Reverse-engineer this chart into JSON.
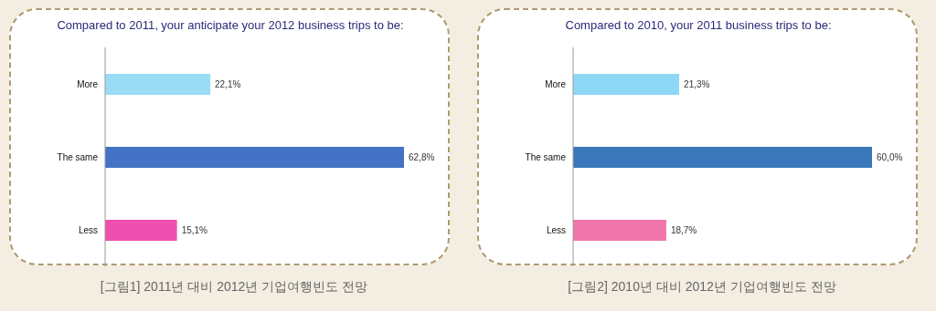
{
  "chart_data": [
    {
      "type": "bar",
      "orientation": "horizontal",
      "title": "Compared to 2011, your anticipate your 2012 business trips to be:",
      "categories": [
        "More",
        "The same",
        "Less"
      ],
      "values": [
        22.1,
        62.8,
        15.1
      ],
      "colors": [
        "#99dcf5",
        "#4472c4",
        "#ef4fae"
      ],
      "value_labels": [
        "22,1%",
        "62,8%",
        "15,1%"
      ],
      "annotations": [
        "[그림1] 2011년 대비 2012년 기업여행빈도 전망"
      ]
    },
    {
      "type": "bar",
      "orientation": "horizontal",
      "title": "Compared to 2010, your 2011 business trips to be:",
      "categories": [
        "More",
        "The same",
        "Less"
      ],
      "values": [
        21.3,
        60.0,
        18.7
      ],
      "colors": [
        "#8fd8f5",
        "#3a78bb",
        "#f075ab"
      ],
      "value_labels": [
        "21,3%",
        "60,0%",
        "18,7%"
      ],
      "annotations": [
        "[그림2] 2010년 대비 2012년 기업여행빈도 전망"
      ]
    }
  ]
}
